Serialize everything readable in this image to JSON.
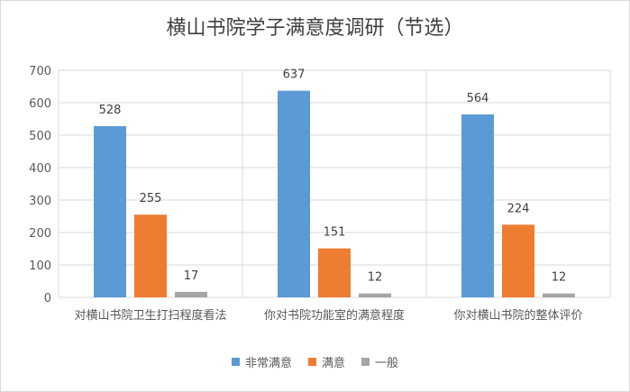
{
  "chart_data": {
    "type": "bar",
    "title": "横山书院学子满意度调研（节选）",
    "categories": [
      "对横山书院卫生打扫程度看法",
      "你对书院功能室的满意程度",
      "你对横山书院的整体评价"
    ],
    "series": [
      {
        "name": "非常满意",
        "color": "#5B9BD5",
        "values": [
          528,
          637,
          564
        ]
      },
      {
        "name": "满意",
        "color": "#ED7D31",
        "values": [
          255,
          151,
          224
        ]
      },
      {
        "name": "一般",
        "color": "#A5A5A5",
        "values": [
          17,
          12,
          12
        ]
      }
    ],
    "ylim": [
      0,
      700
    ],
    "yticks": [
      0,
      100,
      200,
      300,
      400,
      500,
      600,
      700
    ],
    "grid": true,
    "legend_position": "bottom"
  }
}
